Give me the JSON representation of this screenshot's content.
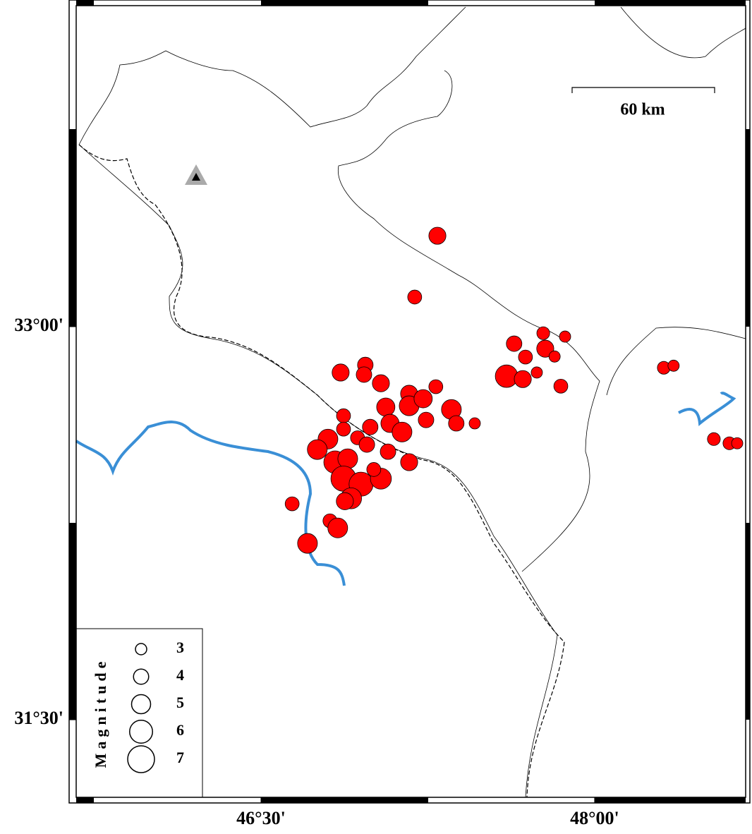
{
  "chart_data": {
    "type": "map",
    "xlim": [
      45.669,
      48.679
    ],
    "ylim": [
      31.204,
      34.225
    ],
    "xticks": [
      {
        "value": 46.5,
        "label": "46°30'"
      },
      {
        "value": 48,
        "label": "48°00'"
      }
    ],
    "yticks": [
      {
        "value": 31.5,
        "label": "31°30'"
      },
      {
        "value": 33,
        "label": "33°00'"
      }
    ],
    "scale_label": "60 km",
    "legend_title": "Magnitude",
    "legend_sizes": [
      3,
      4,
      5,
      6,
      7
    ],
    "series": [
      {
        "color": "#ff0000",
        "x": [
          47.293,
          47.191,
          47.638,
          47.769,
          47.867,
          47.689,
          47.778,
          47.604,
          47.677,
          47.848,
          47.74,
          47.82,
          48.311,
          48.355,
          48.536,
          48.606,
          48.641,
          46.858,
          46.969,
          47.039,
          46.963,
          47.166,
          47.286,
          47.061,
          47.166,
          47.229,
          47.356,
          47.242,
          47.378,
          47.461,
          46.871,
          46.871,
          46.991,
          47.08,
          47.134,
          46.934,
          46.976,
          46.801,
          46.753,
          46.833,
          46.89,
          47.071,
          47.166,
          46.871,
          46.95,
          47.039,
          47.007,
          46.905,
          46.877,
          46.81,
          46.845,
          46.709,
          46.64
        ],
        "y": [
          33.347,
          33.113,
          32.935,
          32.975,
          32.962,
          32.884,
          32.916,
          32.811,
          32.8,
          32.773,
          32.825,
          32.886,
          32.843,
          32.851,
          32.571,
          32.555,
          32.555,
          32.825,
          32.854,
          32.784,
          32.817,
          32.744,
          32.771,
          32.693,
          32.698,
          32.725,
          32.684,
          32.644,
          32.631,
          32.631,
          32.66,
          32.609,
          32.617,
          32.631,
          32.598,
          32.576,
          32.55,
          32.571,
          32.531,
          32.483,
          32.496,
          32.523,
          32.483,
          32.42,
          32.399,
          32.42,
          32.455,
          32.345,
          32.334,
          32.259,
          32.232,
          32.173,
          32.324
        ],
        "magnitude": [
          4.5,
          3.7,
          4.1,
          3.4,
          3,
          3.7,
          4.5,
          5.9,
          4.5,
          3.7,
          3,
          3,
          3.4,
          3,
          3.4,
          3.4,
          3,
          4.5,
          4.1,
          4.5,
          4.1,
          4.5,
          3.7,
          4.8,
          5.2,
          4.8,
          5.2,
          4.1,
          4.1,
          3,
          3.7,
          3.7,
          4.1,
          4.8,
          5.2,
          3.7,
          4.1,
          5.2,
          5.2,
          5.9,
          5.2,
          4.1,
          4.5,
          6.6,
          6.3,
          5.5,
          3.7,
          5.5,
          4.5,
          3.7,
          5.2,
          5.2,
          3.7
        ]
      }
    ]
  }
}
